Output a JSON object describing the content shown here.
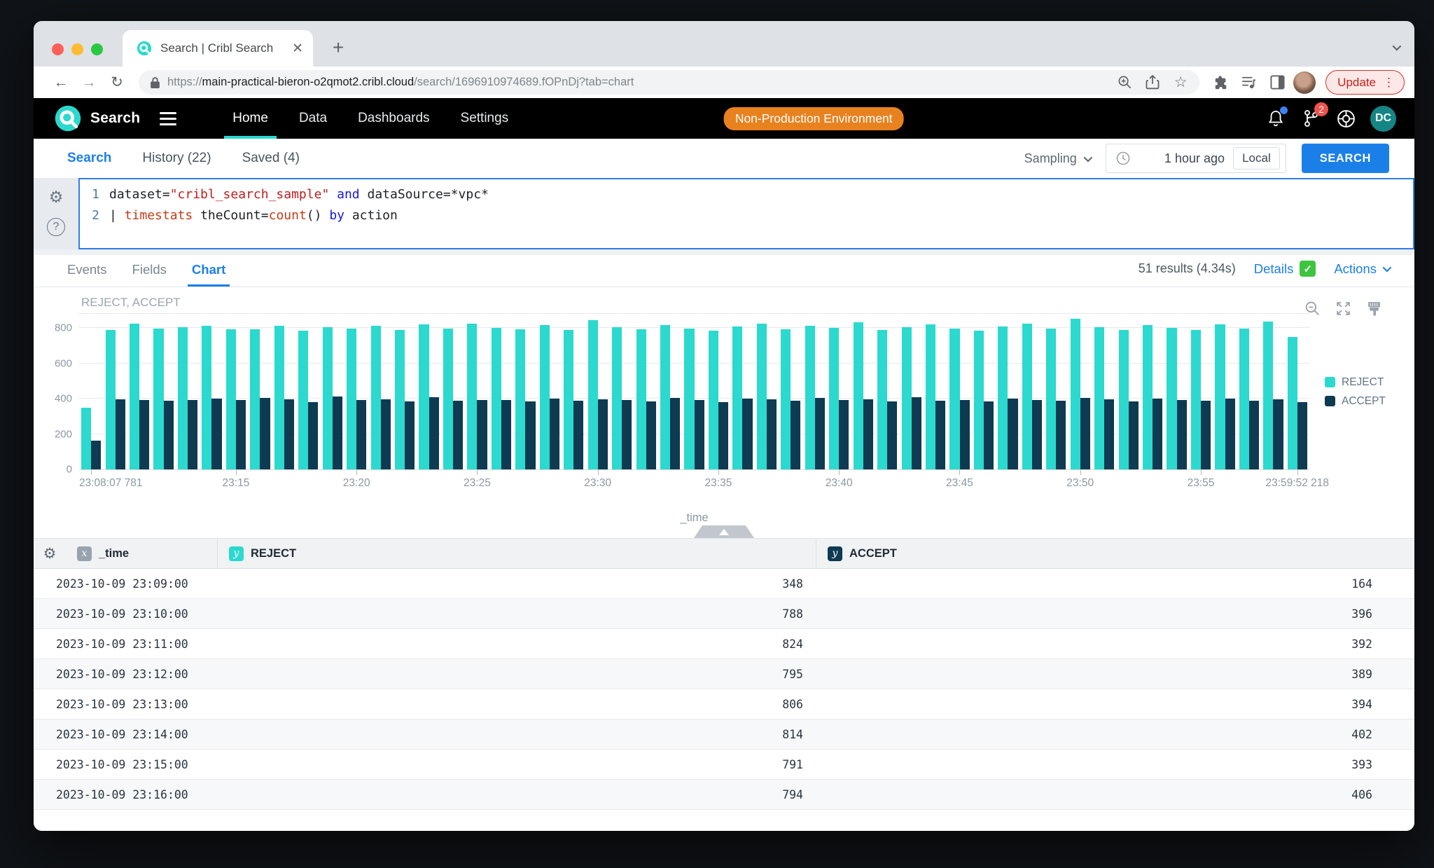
{
  "browser": {
    "tab_title": "Search | Cribl Search",
    "url_scheme": "https://",
    "url_host": "main-practical-bieron-o2qmot2.cribl.cloud",
    "url_path": "/search/1696910974689.fOPnDj?tab=chart",
    "update_label": "Update"
  },
  "appnav": {
    "brand": "Search",
    "items": [
      {
        "label": "Home",
        "active": true
      },
      {
        "label": "Data",
        "active": false
      },
      {
        "label": "Dashboards",
        "active": false
      },
      {
        "label": "Settings",
        "active": false
      }
    ],
    "env_badge": "Non-Production Environment",
    "branch_badge_count": "2",
    "avatar_initials": "DC",
    "accent_teal": "#2bd9ce"
  },
  "subnav": {
    "tabs": [
      {
        "label": "Search",
        "active": true
      },
      {
        "label": "History (22)",
        "active": false
      },
      {
        "label": "Saved (4)",
        "active": false
      }
    ],
    "sampling_label": "Sampling",
    "time_range": "1 hour ago",
    "timezone_label": "Local",
    "search_button": "SEARCH"
  },
  "editor": {
    "lines": [
      {
        "num": "1",
        "tokens": [
          {
            "t": "dataset=",
            "c": "plain"
          },
          {
            "t": "\"cribl_search_sample\"",
            "c": "str"
          },
          {
            "t": " ",
            "c": "plain"
          },
          {
            "t": "and",
            "c": "kw"
          },
          {
            "t": " dataSource=*vpc*",
            "c": "plain"
          }
        ]
      },
      {
        "num": "2",
        "tokens": [
          {
            "t": "| ",
            "c": "plain"
          },
          {
            "t": "timestats",
            "c": "fn"
          },
          {
            "t": " theCount=",
            "c": "plain"
          },
          {
            "t": "count",
            "c": "fn"
          },
          {
            "t": "() ",
            "c": "plain"
          },
          {
            "t": "by",
            "c": "kw"
          },
          {
            "t": " action",
            "c": "plain"
          }
        ]
      }
    ]
  },
  "results": {
    "tabs": [
      {
        "label": "Events",
        "active": false
      },
      {
        "label": "Fields",
        "active": false
      },
      {
        "label": "Chart",
        "active": true
      }
    ],
    "summary": "51 results (4.34s)",
    "details_label": "Details",
    "actions_label": "Actions"
  },
  "chart_data": {
    "type": "bar",
    "title": "REJECT, ACCEPT",
    "xlabel": "_time",
    "ylim": [
      0,
      800
    ],
    "scale_max": 880,
    "yticks": [
      0,
      200,
      400,
      600,
      800
    ],
    "grid": "horizontal dotted",
    "legend_position": "right",
    "categories": [
      "23:09",
      "23:10",
      "23:11",
      "23:12",
      "23:13",
      "23:14",
      "23:15",
      "23:16",
      "23:17",
      "23:18",
      "23:19",
      "23:20",
      "23:21",
      "23:22",
      "23:23",
      "23:24",
      "23:25",
      "23:26",
      "23:27",
      "23:28",
      "23:29",
      "23:30",
      "23:31",
      "23:32",
      "23:33",
      "23:34",
      "23:35",
      "23:36",
      "23:37",
      "23:38",
      "23:39",
      "23:40",
      "23:41",
      "23:42",
      "23:43",
      "23:44",
      "23:45",
      "23:46",
      "23:47",
      "23:48",
      "23:49",
      "23:50",
      "23:51",
      "23:52",
      "23:53",
      "23:54",
      "23:55",
      "23:56",
      "23:57",
      "23:58",
      "23:59"
    ],
    "x_tick_labels": [
      {
        "index": 0,
        "label": "23:08:07 781"
      },
      {
        "index": 6,
        "label": "23:15"
      },
      {
        "index": 11,
        "label": "23:20"
      },
      {
        "index": 16,
        "label": "23:25"
      },
      {
        "index": 21,
        "label": "23:30"
      },
      {
        "index": 26,
        "label": "23:35"
      },
      {
        "index": 31,
        "label": "23:40"
      },
      {
        "index": 36,
        "label": "23:45"
      },
      {
        "index": 41,
        "label": "23:50"
      },
      {
        "index": 46,
        "label": "23:55"
      },
      {
        "index": 50,
        "label": "23:59:52 218"
      }
    ],
    "series": [
      {
        "name": "REJECT",
        "color": "#2bd9ce",
        "values": [
          348,
          788,
          824,
          795,
          806,
          814,
          791,
          794,
          812,
          786,
          803,
          798,
          811,
          789,
          820,
          796,
          824,
          801,
          793,
          816,
          787,
          843,
          806,
          792,
          818,
          797,
          784,
          809,
          826,
          794,
          812,
          800,
          831,
          788,
          805,
          819,
          796,
          783,
          810,
          824,
          798,
          852,
          806,
          790,
          815,
          802,
          787,
          821,
          795,
          836,
          751
        ]
      },
      {
        "name": "ACCEPT",
        "color": "#0e3a52",
        "values": [
          164,
          396,
          392,
          389,
          394,
          402,
          393,
          406,
          397,
          381,
          412,
          391,
          396,
          384,
          409,
          388,
          394,
          392,
          386,
          401,
          390,
          398,
          393,
          385,
          404,
          391,
          380,
          399,
          395,
          387,
          403,
          392,
          397,
          383,
          408,
          390,
          394,
          386,
          400,
          391,
          388,
          405,
          396,
          384,
          399,
          392,
          389,
          402,
          387,
          398,
          381
        ]
      }
    ]
  },
  "table": {
    "columns": [
      {
        "badge": "x",
        "badge_color": "#97a3ad",
        "label": "_time"
      },
      {
        "badge": "y",
        "badge_color": "#2bd9ce",
        "label": "REJECT"
      },
      {
        "badge": "y",
        "badge_color": "#0e3a52",
        "label": "ACCEPT"
      }
    ],
    "rows": [
      [
        "2023-10-09 23:09:00",
        "348",
        "164"
      ],
      [
        "2023-10-09 23:10:00",
        "788",
        "396"
      ],
      [
        "2023-10-09 23:11:00",
        "824",
        "392"
      ],
      [
        "2023-10-09 23:12:00",
        "795",
        "389"
      ],
      [
        "2023-10-09 23:13:00",
        "806",
        "394"
      ],
      [
        "2023-10-09 23:14:00",
        "814",
        "402"
      ],
      [
        "2023-10-09 23:15:00",
        "791",
        "393"
      ],
      [
        "2023-10-09 23:16:00",
        "794",
        "406"
      ]
    ]
  }
}
